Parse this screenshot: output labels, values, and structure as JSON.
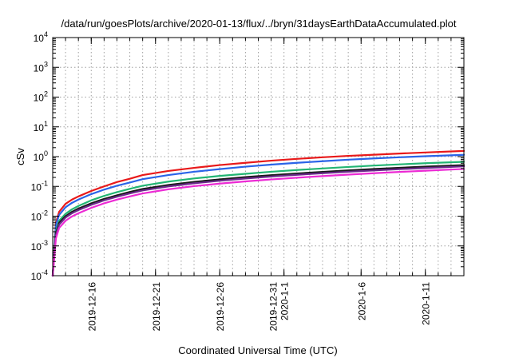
{
  "chart_data": {
    "type": "line",
    "title": "/data/run/goesPlots/archive/2020-01-13/flux/../bryn/31daysEarthDataAccumulated.plot",
    "xlabel": "Coordinated Universal Time (UTC)",
    "ylabel": "cSv",
    "yscale": "log",
    "ylim": [
      0.0001,
      10000
    ],
    "xlim": [
      "2019-12-13",
      "2020-01-14"
    ],
    "grid": true,
    "y_ticks": [
      {
        "mantissa": "10",
        "exp": "-4",
        "value": 0.0001
      },
      {
        "mantissa": "10",
        "exp": "-3",
        "value": 0.001
      },
      {
        "mantissa": "10",
        "exp": "-2",
        "value": 0.01
      },
      {
        "mantissa": "10",
        "exp": "-1",
        "value": 0.1
      },
      {
        "mantissa": "10",
        "exp": "0",
        "value": 1
      },
      {
        "mantissa": "10",
        "exp": "1",
        "value": 10
      },
      {
        "mantissa": "10",
        "exp": "2",
        "value": 100
      },
      {
        "mantissa": "10",
        "exp": "3",
        "value": 1000
      },
      {
        "mantissa": "10",
        "exp": "4",
        "value": 10000
      }
    ],
    "x_ticks": [
      {
        "date": "2019-12-16",
        "lines": [
          "2019-12-16"
        ]
      },
      {
        "date": "2019-12-21",
        "lines": [
          "2019-12-21"
        ]
      },
      {
        "date": "2019-12-26",
        "lines": [
          "2019-12-26"
        ]
      },
      {
        "date": "2019-12-31",
        "lines": [
          "2019-12-31",
          "2020-1-1"
        ]
      },
      {
        "date": "2020-01-06",
        "lines": [
          "2020-1-6"
        ]
      },
      {
        "date": "2020-01-11",
        "lines": [
          "2020-1-11"
        ]
      }
    ],
    "x_minor_every_days": 1,
    "series": [
      {
        "color": "#e8191a",
        "points": [
          [
            "2019-12-13",
            0.0001
          ],
          [
            "2019-12-13T06:00",
            0.006
          ],
          [
            "2019-12-13T12:00",
            0.014
          ],
          [
            "2019-12-14",
            0.026
          ],
          [
            "2019-12-14T12:00",
            0.036
          ],
          [
            "2019-12-15",
            0.046
          ],
          [
            "2019-12-16",
            0.07
          ],
          [
            "2019-12-17",
            0.1
          ],
          [
            "2019-12-18",
            0.14
          ],
          [
            "2019-12-19",
            0.18
          ],
          [
            "2019-12-20",
            0.24
          ],
          [
            "2019-12-22",
            0.33
          ],
          [
            "2019-12-24",
            0.42
          ],
          [
            "2019-12-26",
            0.52
          ],
          [
            "2019-12-28",
            0.62
          ],
          [
            "2019-12-30",
            0.73
          ],
          [
            "2020-01-01",
            0.84
          ],
          [
            "2020-01-03",
            0.95
          ],
          [
            "2020-01-05",
            1.06
          ],
          [
            "2020-01-07",
            1.16
          ],
          [
            "2020-01-09",
            1.27
          ],
          [
            "2020-01-11",
            1.38
          ],
          [
            "2020-01-14",
            1.55
          ]
        ]
      },
      {
        "color": "#2a64e8",
        "points": [
          [
            "2019-12-13",
            0.0001
          ],
          [
            "2019-12-13T06:00",
            0.005
          ],
          [
            "2019-12-13T12:00",
            0.011
          ],
          [
            "2019-12-14",
            0.02
          ],
          [
            "2019-12-14T12:00",
            0.028
          ],
          [
            "2019-12-15",
            0.036
          ],
          [
            "2019-12-16",
            0.055
          ],
          [
            "2019-12-17",
            0.078
          ],
          [
            "2019-12-18",
            0.105
          ],
          [
            "2019-12-19",
            0.135
          ],
          [
            "2019-12-20",
            0.175
          ],
          [
            "2019-12-22",
            0.24
          ],
          [
            "2019-12-24",
            0.31
          ],
          [
            "2019-12-26",
            0.38
          ],
          [
            "2019-12-28",
            0.46
          ],
          [
            "2019-12-30",
            0.54
          ],
          [
            "2020-01-01",
            0.62
          ],
          [
            "2020-01-03",
            0.7
          ],
          [
            "2020-01-05",
            0.79
          ],
          [
            "2020-01-07",
            0.87
          ],
          [
            "2020-01-09",
            0.95
          ],
          [
            "2020-01-11",
            1.03
          ],
          [
            "2020-01-14",
            1.15
          ]
        ]
      },
      {
        "color": "#22b573",
        "points": [
          [
            "2019-12-13",
            0.0001
          ],
          [
            "2019-12-13T06:00",
            0.003
          ],
          [
            "2019-12-13T12:00",
            0.007
          ],
          [
            "2019-12-14",
            0.012
          ],
          [
            "2019-12-14T12:00",
            0.017
          ],
          [
            "2019-12-15",
            0.022
          ],
          [
            "2019-12-16",
            0.034
          ],
          [
            "2019-12-17",
            0.048
          ],
          [
            "2019-12-18",
            0.064
          ],
          [
            "2019-12-19",
            0.083
          ],
          [
            "2019-12-20",
            0.105
          ],
          [
            "2019-12-22",
            0.145
          ],
          [
            "2019-12-24",
            0.185
          ],
          [
            "2019-12-26",
            0.225
          ],
          [
            "2019-12-28",
            0.265
          ],
          [
            "2019-12-30",
            0.31
          ],
          [
            "2020-01-01",
            0.355
          ],
          [
            "2020-01-03",
            0.4
          ],
          [
            "2020-01-05",
            0.45
          ],
          [
            "2020-01-07",
            0.5
          ],
          [
            "2020-01-09",
            0.55
          ],
          [
            "2020-01-11",
            0.6
          ],
          [
            "2020-01-14",
            0.67
          ]
        ]
      },
      {
        "color": "#1a1a1a",
        "points": [
          [
            "2019-12-13",
            0.0001
          ],
          [
            "2019-12-13T06:00",
            0.0026
          ],
          [
            "2019-12-13T12:00",
            0.006
          ],
          [
            "2019-12-14",
            0.01
          ],
          [
            "2019-12-14T12:00",
            0.014
          ],
          [
            "2019-12-15",
            0.018
          ],
          [
            "2019-12-16",
            0.027
          ],
          [
            "2019-12-17",
            0.038
          ],
          [
            "2019-12-18",
            0.05
          ],
          [
            "2019-12-19",
            0.065
          ],
          [
            "2019-12-20",
            0.082
          ],
          [
            "2019-12-22",
            0.112
          ],
          [
            "2019-12-24",
            0.142
          ],
          [
            "2019-12-26",
            0.172
          ],
          [
            "2019-12-28",
            0.205
          ],
          [
            "2019-12-30",
            0.238
          ],
          [
            "2020-01-01",
            0.272
          ],
          [
            "2020-01-03",
            0.307
          ],
          [
            "2020-01-05",
            0.345
          ],
          [
            "2020-01-07",
            0.383
          ],
          [
            "2020-01-09",
            0.422
          ],
          [
            "2020-01-11",
            0.462
          ],
          [
            "2020-01-14",
            0.52
          ]
        ]
      },
      {
        "color": "#6a2a8a",
        "points": [
          [
            "2019-12-13",
            0.0001
          ],
          [
            "2019-12-13T06:00",
            0.0023
          ],
          [
            "2019-12-13T12:00",
            0.0052
          ],
          [
            "2019-12-14",
            0.009
          ],
          [
            "2019-12-14T12:00",
            0.0125
          ],
          [
            "2019-12-15",
            0.016
          ],
          [
            "2019-12-16",
            0.024
          ],
          [
            "2019-12-17",
            0.034
          ],
          [
            "2019-12-18",
            0.045
          ],
          [
            "2019-12-19",
            0.058
          ],
          [
            "2019-12-20",
            0.073
          ],
          [
            "2019-12-22",
            0.1
          ],
          [
            "2019-12-24",
            0.127
          ],
          [
            "2019-12-26",
            0.155
          ],
          [
            "2019-12-28",
            0.184
          ],
          [
            "2019-12-30",
            0.214
          ],
          [
            "2020-01-01",
            0.245
          ],
          [
            "2020-01-03",
            0.277
          ],
          [
            "2020-01-05",
            0.31
          ],
          [
            "2020-01-07",
            0.344
          ],
          [
            "2020-01-09",
            0.379
          ],
          [
            "2020-01-11",
            0.415
          ],
          [
            "2020-01-14",
            0.47
          ]
        ]
      },
      {
        "color": "#ec2ad4",
        "points": [
          [
            "2019-12-13",
            0.0001
          ],
          [
            "2019-12-13T06:00",
            0.0018
          ],
          [
            "2019-12-13T12:00",
            0.004
          ],
          [
            "2019-12-14",
            0.007
          ],
          [
            "2019-12-14T12:00",
            0.0098
          ],
          [
            "2019-12-15",
            0.0125
          ],
          [
            "2019-12-16",
            0.019
          ],
          [
            "2019-12-17",
            0.027
          ],
          [
            "2019-12-18",
            0.036
          ],
          [
            "2019-12-19",
            0.046
          ],
          [
            "2019-12-20",
            0.058
          ],
          [
            "2019-12-22",
            0.08
          ],
          [
            "2019-12-24",
            0.102
          ],
          [
            "2019-12-26",
            0.124
          ],
          [
            "2019-12-28",
            0.147
          ],
          [
            "2019-12-30",
            0.171
          ],
          [
            "2020-01-01",
            0.196
          ],
          [
            "2020-01-03",
            0.222
          ],
          [
            "2020-01-05",
            0.249
          ],
          [
            "2020-01-07",
            0.277
          ],
          [
            "2020-01-09",
            0.306
          ],
          [
            "2020-01-11",
            0.336
          ],
          [
            "2020-01-14",
            0.385
          ]
        ]
      }
    ]
  }
}
